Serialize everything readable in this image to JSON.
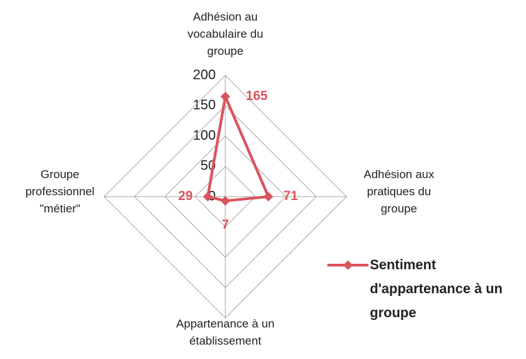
{
  "chart_data": {
    "type": "radar",
    "categories": [
      "Adhésion au vocabulaire du groupe",
      "Adhésion aux pratiques du groupe",
      "Appartenance à un établissement",
      "Groupe professionnel \"métier\""
    ],
    "series": [
      {
        "name": "Sentiment d'appartenance à un groupe",
        "color": "#d9545c",
        "values": [
          165,
          71,
          7,
          29
        ]
      }
    ],
    "ylim": [
      0,
      200
    ],
    "yticks": [
      0,
      50,
      100,
      150,
      200
    ],
    "grid": true,
    "legend": "right"
  }
}
